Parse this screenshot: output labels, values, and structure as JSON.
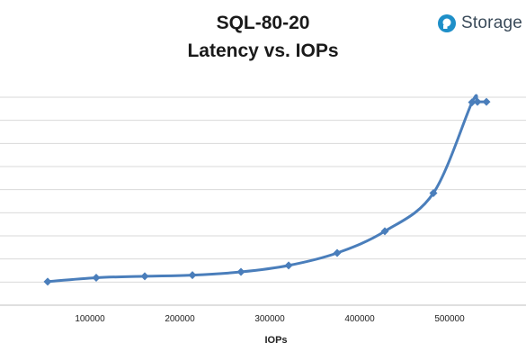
{
  "brand": {
    "name": "Storage",
    "icon": "storage-logo-icon",
    "color": "#1e8fc8"
  },
  "chart_data": {
    "type": "line",
    "title": "SQL-80-20",
    "subtitle": "Latency vs. IOPs",
    "xlabel": "IOPs",
    "ylabel": "",
    "x_ticks": [
      100000,
      200000,
      300000,
      400000,
      500000
    ],
    "x_tick_labels": [
      "100000",
      "200000",
      "300000",
      "400000",
      "500000"
    ],
    "xlim": [
      0,
      585000
    ],
    "ylim": [
      0,
      9
    ],
    "y_gridlines": 9,
    "y_tick_labels_visible": false,
    "grid": true,
    "legend": "none",
    "series": [
      {
        "color": "#4a7ebb",
        "marker": "diamond",
        "x": [
          53000,
          107000,
          161000,
          214000,
          268000,
          321000,
          375000,
          428000,
          482000,
          525000,
          531000,
          541000
        ],
        "y": [
          1.02,
          1.19,
          1.25,
          1.3,
          1.44,
          1.72,
          2.26,
          3.2,
          4.85,
          8.78,
          8.8,
          8.8
        ]
      }
    ]
  }
}
